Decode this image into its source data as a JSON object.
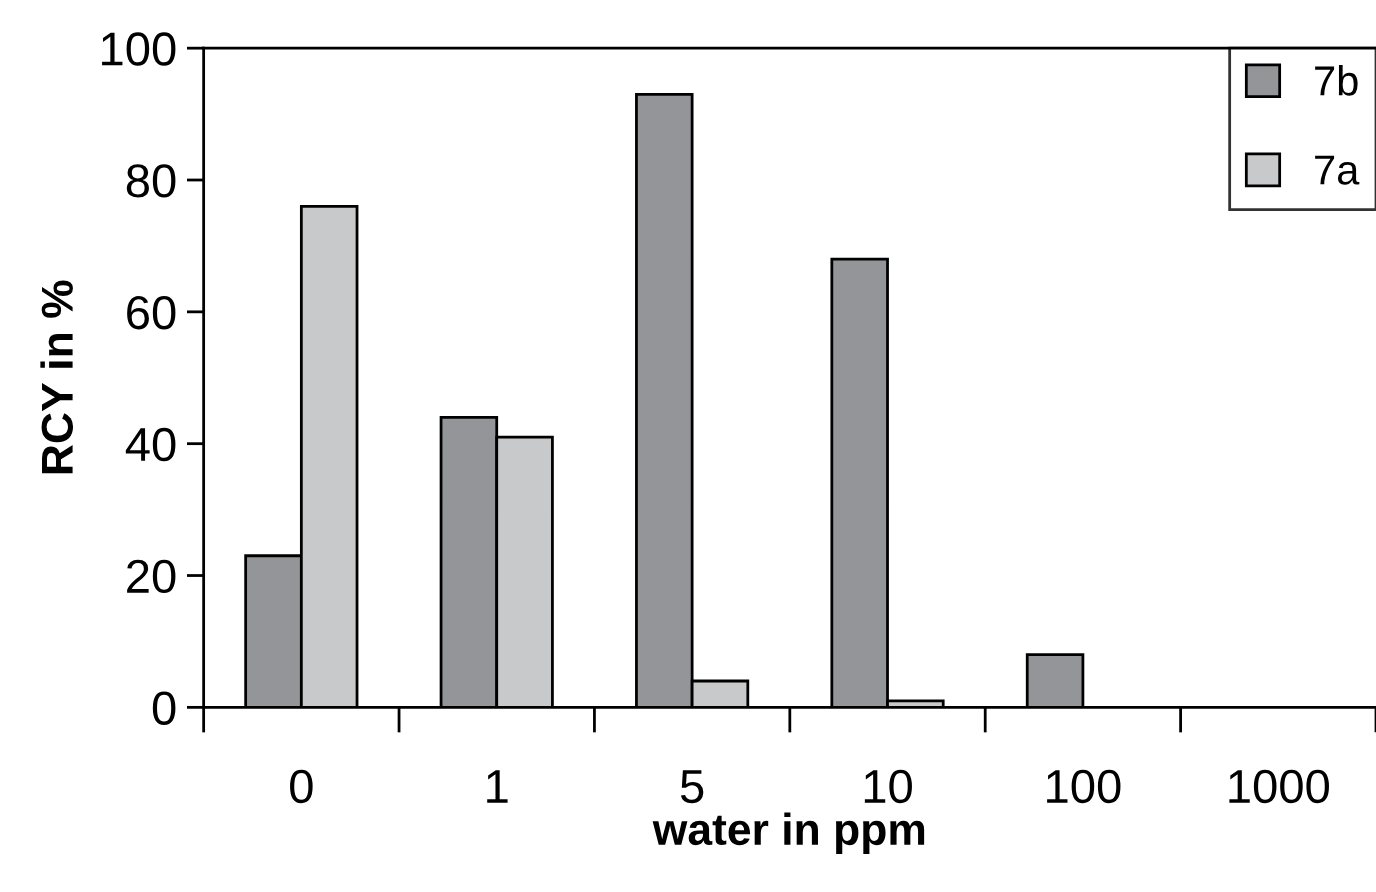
{
  "chart_data": {
    "type": "bar",
    "xlabel": "water in ppm",
    "ylabel": "RCY in %",
    "categories": [
      "0",
      "1",
      "5",
      "10",
      "100",
      "1000"
    ],
    "series": [
      {
        "name": "7b",
        "color": "#939598",
        "values": [
          23,
          44,
          93,
          68,
          8,
          null
        ]
      },
      {
        "name": "7a",
        "color": "#c8c9cb",
        "values": [
          76,
          41,
          4,
          1,
          null,
          null
        ]
      }
    ],
    "ylim": [
      0,
      100
    ],
    "yticks": [
      0,
      20,
      40,
      60,
      80,
      100
    ],
    "grid": false,
    "legend": "top right"
  }
}
